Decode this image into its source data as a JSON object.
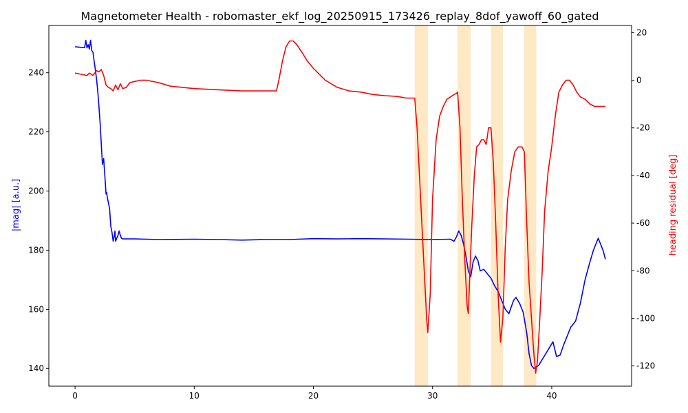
{
  "chart_data": {
    "type": "line",
    "title": "Magnetometer Health - robomaster_ekf_log_20250915_173426_replay_8dof_yawoff_60_gated",
    "xlabel": "",
    "xlim": [
      -2.2,
      46.7
    ],
    "xticks": [
      0,
      10,
      20,
      30,
      40
    ],
    "left_axis": {
      "label": "|mag| [a.u.]",
      "color": "#0000ff",
      "ylim": [
        134,
        256
      ],
      "ticks": [
        140,
        160,
        180,
        200,
        220,
        240
      ]
    },
    "right_axis": {
      "label": "heading residual [deg]",
      "color": "#ff0000",
      "ylim": [
        -128.5,
        23
      ],
      "ticks": [
        -120,
        -100,
        -80,
        -60,
        -40,
        -20,
        0,
        20
      ]
    },
    "shaded_spans": [
      {
        "x0": 28.5,
        "x1": 29.6
      },
      {
        "x0": 32.1,
        "x1": 33.2
      },
      {
        "x0": 34.9,
        "x1": 35.9
      },
      {
        "x0": 37.7,
        "x1": 38.7
      }
    ],
    "shade_color": "#ffe8c4",
    "series": [
      {
        "axis": "left",
        "color": "#0000ff",
        "x": [
          0,
          0.5,
          0.8,
          0.9,
          1.0,
          1.1,
          1.2,
          1.3,
          1.4,
          1.5,
          1.6,
          1.7,
          1.8,
          1.9,
          2.0,
          2.1,
          2.2,
          2.3,
          2.4,
          2.5,
          2.55,
          2.6,
          2.65,
          2.7,
          2.75,
          2.8,
          2.9,
          3.0,
          3.1,
          3.2,
          3.3,
          3.35,
          3.4,
          3.5,
          3.6,
          3.7,
          3.8,
          3.9,
          4.0,
          4.2,
          5,
          7,
          10,
          12,
          14,
          16,
          18,
          20,
          22,
          24,
          26,
          28,
          30,
          31.5,
          31.8,
          32.0,
          32.2,
          32.4,
          32.6,
          32.8,
          33.0,
          33.2,
          33.4,
          33.6,
          33.8,
          34.0,
          34.3,
          34.6,
          34.9,
          35.2,
          35.5,
          35.8,
          36.1,
          36.4,
          36.8,
          37.0,
          37.3,
          37.6,
          37.9,
          38.1,
          38.3,
          38.5,
          38.7,
          38.9,
          39.2,
          39.5,
          39.8,
          40.1,
          40.4,
          40.7,
          41.0,
          41.3,
          41.6,
          42.0,
          42.4,
          42.8,
          43.2,
          43.5,
          43.7,
          43.9,
          44.1,
          44.3,
          44.5
        ],
        "y": [
          248.8,
          248.6,
          248.5,
          251,
          248.4,
          249.5,
          248.0,
          251,
          247.5,
          247,
          244,
          241,
          238,
          234,
          229,
          223,
          216,
          209,
          211,
          205,
          202,
          199,
          199.5,
          198,
          197,
          196,
          194,
          188,
          186,
          183,
          185,
          186.5,
          183,
          184,
          185,
          186.5,
          185,
          184,
          183.8,
          183.8,
          183.8,
          183.6,
          183.7,
          183.6,
          183.4,
          183.6,
          183.6,
          183.9,
          183.8,
          183.9,
          183.8,
          183.7,
          183.6,
          183.7,
          183.0,
          184.5,
          186.5,
          185,
          182,
          178,
          173,
          171,
          176,
          178,
          176.5,
          173,
          173.5,
          172,
          170.5,
          168,
          166,
          163,
          160,
          158.5,
          163,
          164,
          162,
          159,
          152,
          145,
          141,
          140,
          140.5,
          141,
          143,
          145,
          147,
          149,
          144,
          144.5,
          148,
          151,
          154,
          156,
          162,
          170,
          176,
          180,
          182,
          184,
          182,
          180,
          177
        ]
      },
      {
        "axis": "right",
        "color": "#ff0000",
        "x": [
          0,
          0.5,
          1.0,
          1.2,
          1.5,
          1.8,
          2.0,
          2.2,
          2.4,
          2.6,
          2.8,
          3.0,
          3.2,
          3.4,
          3.6,
          3.8,
          4.0,
          4.3,
          4.6,
          5.0,
          5.5,
          6.0,
          7,
          8,
          9,
          10,
          12,
          14,
          15,
          16,
          16.9,
          17.1,
          17.4,
          17.7,
          18.0,
          18.3,
          18.6,
          19.0,
          19.5,
          20,
          21,
          22,
          23,
          24,
          25,
          26,
          27,
          27.8,
          28.5,
          28.7,
          28.9,
          29.1,
          29.3,
          29.5,
          29.6,
          29.8,
          30.0,
          30.3,
          30.6,
          30.9,
          31.2,
          31.5,
          31.8,
          32.0,
          32.1,
          32.3,
          32.5,
          32.7,
          32.9,
          33.0,
          33.1,
          33.3,
          33.5,
          33.7,
          33.9,
          34.1,
          34.3,
          34.5,
          34.7,
          34.9,
          35.1,
          35.3,
          35.5,
          35.7,
          35.9,
          36.1,
          36.3,
          36.6,
          36.9,
          37.2,
          37.5,
          37.7,
          37.9,
          38.1,
          38.3,
          38.5,
          38.65,
          38.8,
          39.0,
          39.2,
          39.4,
          39.7,
          40.0,
          40.3,
          40.6,
          40.9,
          41.2,
          41.5,
          41.8,
          42.1,
          42.4,
          42.8,
          43.2,
          43.6,
          44.0,
          44.5
        ],
        "y": [
          3,
          2.5,
          2,
          3,
          2,
          4,
          3.5,
          4.5,
          2,
          -2,
          -3,
          -3.5,
          -4.5,
          -2,
          -4,
          -1.5,
          -3.5,
          -3,
          -1,
          -0.5,
          0,
          0,
          -1,
          -2.5,
          -3,
          -3.5,
          -4,
          -4.5,
          -4.5,
          -4.5,
          -4.5,
          0,
          8,
          14,
          16.5,
          16.5,
          15,
          12,
          8,
          5,
          0,
          -3,
          -4.5,
          -5,
          -6,
          -6.5,
          -6.8,
          -7.5,
          -7.5,
          -20,
          -40,
          -60,
          -80,
          -100,
          -106,
          -90,
          -50,
          -25,
          -15,
          -11,
          -8,
          -7,
          -6,
          -5.5,
          -5,
          -20,
          -50,
          -75,
          -95,
          -98,
          -85,
          -60,
          -40,
          -28,
          -27,
          -25,
          -25,
          -27,
          -20,
          -20,
          -35,
          -60,
          -90,
          -110,
          -100,
          -70,
          -50,
          -38,
          -30,
          -28,
          -28,
          -30,
          -60,
          -85,
          -100,
          -115,
          -123,
          -118,
          -100,
          -80,
          -55,
          -38,
          -28,
          -15,
          -5,
          -2,
          0,
          0,
          -2,
          -5,
          -7,
          -8,
          -10,
          -11,
          -11,
          -11
        ]
      }
    ]
  }
}
